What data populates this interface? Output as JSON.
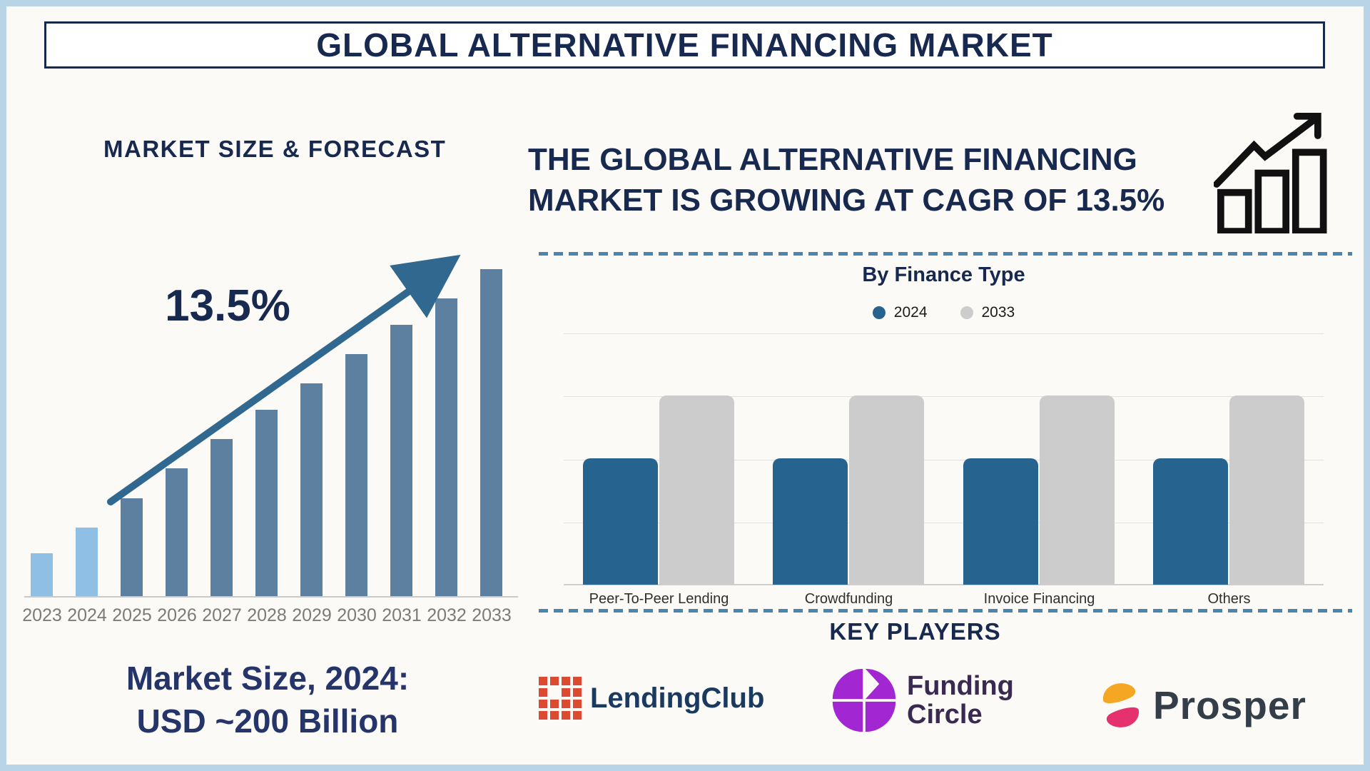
{
  "title": "GLOBAL ALTERNATIVE FINANCING MARKET",
  "colors": {
    "frame_blue": "#b9d3e7",
    "bg": "#fbfaf7",
    "navy": "#18294f",
    "caption_navy": "#25356a",
    "bar_dark": "#5d80a0",
    "bar_light": "#90bfe6",
    "arrow_blue": "#30688f",
    "dash_blue": "#4a85ad",
    "chart_blue": "#26648f",
    "chart_gray": "#cccccc",
    "lc_red": "#dd4a31",
    "lc_navy": "#1b3a5f",
    "fc_purple": "#a227d3",
    "fc_plum": "#3a2950",
    "pr_orange": "#f5a623",
    "pr_pink": "#e5326e",
    "pr_slate": "#333e49",
    "icon_black": "#111111"
  },
  "left": {
    "section_title": "MARKET SIZE & FORECAST",
    "cagr_label": "13.5%",
    "caption_line1": "Market Size, 2024:",
    "caption_line2": "USD ~200 Billion"
  },
  "right": {
    "headline_line1": "THE GLOBAL ALTERNATIVE FINANCING",
    "headline_line2": "MARKET IS GROWING AT CAGR OF 13.5%",
    "key_players_title": "KEY PLAYERS",
    "players": [
      {
        "name": "LendingClub",
        "wordmark": "LendingClub"
      },
      {
        "name": "Funding Circle",
        "wordmark_line1": "Funding",
        "wordmark_line2": "Circle"
      },
      {
        "name": "Prosper",
        "wordmark": "Prosper"
      }
    ]
  },
  "chart_data": [
    {
      "type": "bar",
      "title": "MARKET SIZE & FORECAST",
      "categories": [
        "2023",
        "2024",
        "2025",
        "2026",
        "2027",
        "2028",
        "2029",
        "2030",
        "2031",
        "2032",
        "2033"
      ],
      "values": [
        13,
        21,
        30,
        39,
        48,
        57,
        65,
        74,
        83,
        91,
        100
      ],
      "units": "relative height, % of 2033 bar (no numeric axis shown)",
      "light_bar_count": 2,
      "bar_color_2023_2024": "#90bfe6",
      "bar_color_2025_2033": "#5d80a0",
      "annotation": "13.5%",
      "caption": "Market Size, 2024: USD ~200 Billion",
      "grid": false,
      "xlabel": "",
      "ylabel": ""
    },
    {
      "type": "bar",
      "title": "By Finance Type",
      "categories": [
        "Peer-To-Peer Lending",
        "Crowdfunding",
        "Invoice Financing",
        "Others"
      ],
      "series": [
        {
          "name": "2024",
          "values": [
            2,
            2,
            2,
            2
          ],
          "color": "#26648f"
        },
        {
          "name": "2033",
          "values": [
            3,
            3,
            3,
            3
          ],
          "color": "#cccccc"
        }
      ],
      "ylim": [
        0,
        4
      ],
      "units": "relative gridline units (no numeric axis shown)",
      "grid": true,
      "legend_position": "top",
      "xlabel": "",
      "ylabel": ""
    }
  ]
}
